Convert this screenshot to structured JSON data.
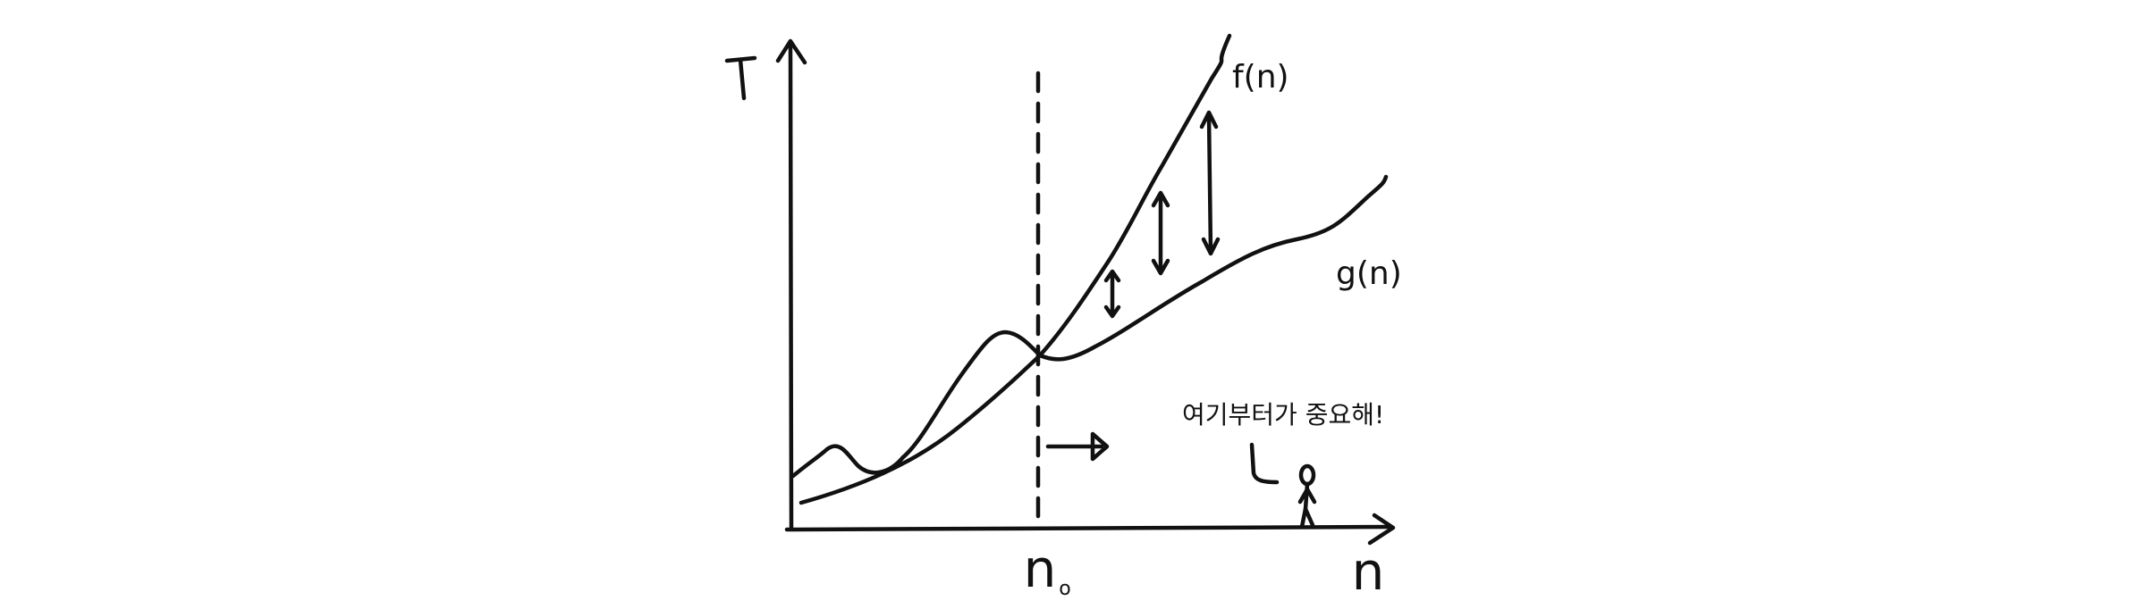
{
  "axes": {
    "y_label": "T",
    "x_label": "n"
  },
  "threshold": {
    "label_main": "n",
    "label_sub": "o"
  },
  "curves": {
    "f_label": "f(n)",
    "g_label": "g(n)"
  },
  "annotation": {
    "text": "여기부터가 중요해!"
  },
  "colors": {
    "ink": "#111111",
    "background": "#ffffff"
  }
}
